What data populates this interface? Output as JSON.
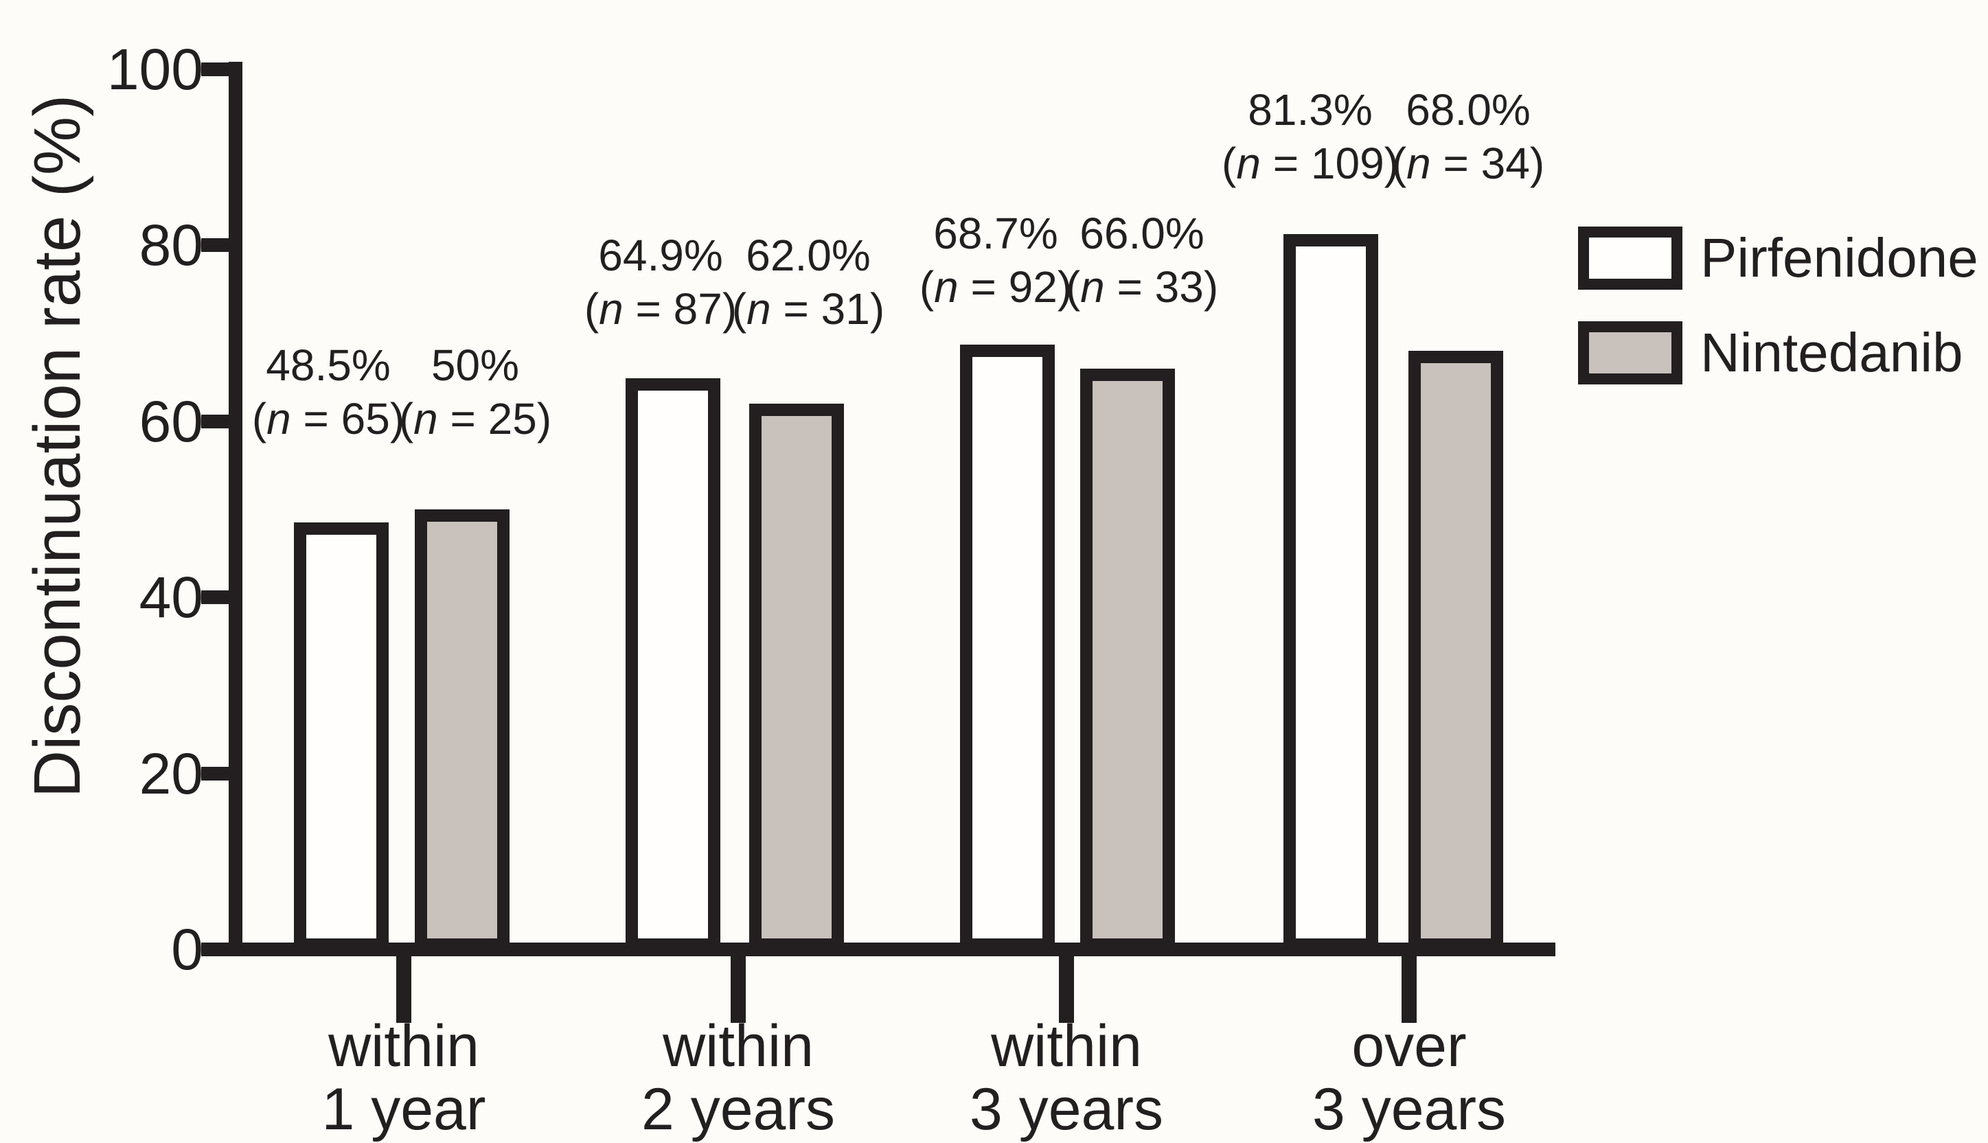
{
  "figure": {
    "background_color": "#fdfcf8",
    "ink_color": "#231f20"
  },
  "chart_data": {
    "type": "bar",
    "title": "",
    "xlabel": "",
    "ylabel": "Discontinuation rate (%)",
    "ylim": [
      0,
      100
    ],
    "yticks": [
      0,
      20,
      40,
      60,
      80,
      100
    ],
    "grid": false,
    "legend_position": "right",
    "categories": [
      {
        "line1": "within",
        "line2": "1 year"
      },
      {
        "line1": "within",
        "line2": "2 years"
      },
      {
        "line1": "within",
        "line2": "3 years"
      },
      {
        "line1": "over",
        "line2": "3 years"
      }
    ],
    "series": [
      {
        "name": "Pirfenidone",
        "fill": "#fffefc",
        "values": [
          48.5,
          64.9,
          68.7,
          81.3
        ],
        "value_labels": [
          "48.5%",
          "64.9%",
          "68.7%",
          "81.3%"
        ],
        "n": [
          65,
          87,
          92,
          109
        ],
        "n_labels": [
          "(n = 65)",
          "(n = 87)",
          "(n = 92)",
          "(n = 109)"
        ]
      },
      {
        "name": "Nintedanib",
        "fill": "#c8c1bc",
        "values": [
          50,
          62,
          66,
          68
        ],
        "value_labels": [
          "50%",
          "62.0%",
          "66.0%",
          "68.0%"
        ],
        "n": [
          25,
          31,
          33,
          34
        ],
        "n_labels": [
          "(n = 25)",
          "(n = 31)",
          "(n = 33)",
          "(n = 34)"
        ]
      }
    ]
  }
}
